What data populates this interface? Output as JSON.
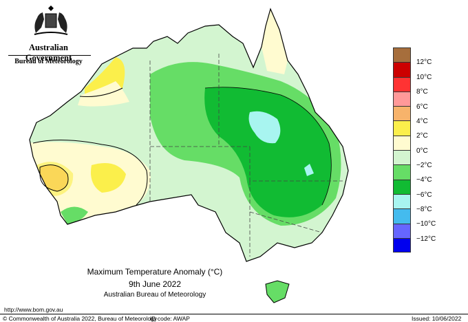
{
  "header": {
    "government": "Australian Government",
    "agency": "Bureau of Meteorology"
  },
  "map": {
    "title": "Maximum Temperature Anomaly (°C)",
    "date": "9th June 2022",
    "source": "Australian Bureau of Meteorology",
    "variable": "maximum temperature anomaly",
    "units": "°C"
  },
  "legend": {
    "colors": [
      "#a66e3c",
      "#cc0000",
      "#ff3333",
      "#ff9999",
      "#f7b36b",
      "#fbef4b",
      "#fffbd0",
      "#d3f5d0",
      "#66dd66",
      "#11bb33",
      "#a8f5f0",
      "#44bbee",
      "#6666ff",
      "#0000ee"
    ],
    "labels": [
      "12°C",
      "10°C",
      "8°C",
      "6°C",
      "4°C",
      "2°C",
      "0°C",
      "−2°C",
      "−4°C",
      "−6°C",
      "−8°C",
      "−10°C",
      "−12°C"
    ]
  },
  "footer": {
    "url": "http://www.bom.gov.au",
    "copyright": "© Commonwealth of Australia 2022, Bureau of Meteorology",
    "id_code": "ID code: AWAP",
    "issued": "Issued: 10/06/2022"
  }
}
